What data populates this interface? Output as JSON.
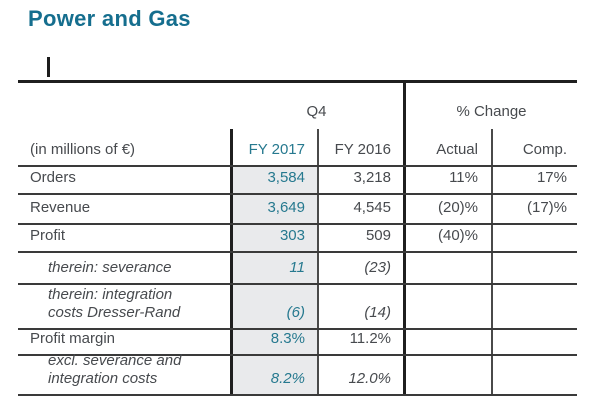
{
  "title": "Power and Gas",
  "colors": {
    "accent_teal": "#156e8e",
    "value_teal": "#26798f",
    "body_text": "#474a4e",
    "thick_line": "#1f1f1f",
    "thin_line": "#4a4a4a",
    "fy2017_column_shade": "#e9eaec"
  },
  "table": {
    "unit_label": "(in millions of €)",
    "group_headers": [
      {
        "label": "Q4"
      },
      {
        "label": "% Change"
      }
    ],
    "col_headers": [
      {
        "label": "FY 2017"
      },
      {
        "label": "FY 2016"
      },
      {
        "label": "Actual"
      },
      {
        "label": "Comp."
      }
    ],
    "rows": [
      {
        "label": "Orders",
        "fy2017": "3,584",
        "fy2016": "3,218",
        "actual": "11%",
        "comp": "17%"
      },
      {
        "label": "Revenue",
        "fy2017": "3,649",
        "fy2016": "4,545",
        "actual": "(20)%",
        "comp": "(17)%"
      },
      {
        "label": "Profit",
        "fy2017": "303",
        "fy2016": "509",
        "actual": "(40)%",
        "comp": ""
      },
      {
        "label": "therein: severance",
        "fy2017": "11",
        "fy2016": "(23)",
        "actual": "",
        "comp": ""
      },
      {
        "label": "therein: integration costs Dresser-Rand",
        "fy2017": "(6)",
        "fy2016": "(14)",
        "actual": "",
        "comp": ""
      },
      {
        "label": "Profit margin",
        "fy2017": "8.3%",
        "fy2016": "11.2%",
        "actual": "",
        "comp": ""
      },
      {
        "label": "excl. severance and integration costs",
        "fy2017": "8.2%",
        "fy2016": "12.0%",
        "actual": "",
        "comp": ""
      }
    ]
  }
}
